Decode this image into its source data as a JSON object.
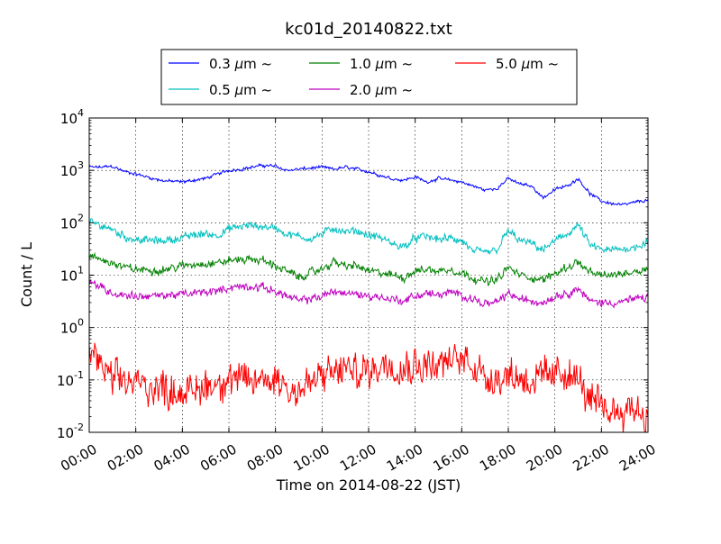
{
  "chart_data": {
    "type": "line",
    "title": "kc01d_20140822.txt",
    "xlabel": "Time on 2014-08-22 (JST)",
    "ylabel": "Count / L",
    "x_unit": "hours",
    "xlim": [
      0,
      24
    ],
    "ylim": [
      0.01,
      10000
    ],
    "y_scale": "log",
    "grid": true,
    "legend_position": "top",
    "x_ticks": [
      {
        "value": 0,
        "label": "00:00"
      },
      {
        "value": 2,
        "label": "02:00"
      },
      {
        "value": 4,
        "label": "04:00"
      },
      {
        "value": 6,
        "label": "06:00"
      },
      {
        "value": 8,
        "label": "08:00"
      },
      {
        "value": 10,
        "label": "10:00"
      },
      {
        "value": 12,
        "label": "12:00"
      },
      {
        "value": 14,
        "label": "14:00"
      },
      {
        "value": 16,
        "label": "16:00"
      },
      {
        "value": 18,
        "label": "18:00"
      },
      {
        "value": 20,
        "label": "20:00"
      },
      {
        "value": 22,
        "label": "22:00"
      },
      {
        "value": 24,
        "label": "24:00"
      }
    ],
    "y_ticks": [
      {
        "value": 0.01,
        "base": "10",
        "exp": "-2"
      },
      {
        "value": 0.1,
        "base": "10",
        "exp": "-1"
      },
      {
        "value": 1,
        "base": "10",
        "exp": "0"
      },
      {
        "value": 10,
        "base": "10",
        "exp": "1"
      },
      {
        "value": 100,
        "base": "10",
        "exp": "2"
      },
      {
        "value": 1000,
        "base": "10",
        "exp": "3"
      },
      {
        "value": 10000,
        "base": "10",
        "exp": "4"
      }
    ],
    "series": [
      {
        "name_prefix": "0.3 ",
        "name_mu": "μ",
        "name_suffix": "m  ~",
        "color": "#0000ff",
        "noise": 0.02,
        "points": [
          [
            0,
            1150
          ],
          [
            0.5,
            1150
          ],
          [
            1,
            1200
          ],
          [
            1.5,
            950
          ],
          [
            2,
            850
          ],
          [
            2.5,
            750
          ],
          [
            3,
            650
          ],
          [
            3.5,
            620
          ],
          [
            4,
            600
          ],
          [
            4.5,
            650
          ],
          [
            5,
            700
          ],
          [
            5.5,
            850
          ],
          [
            6,
            1000
          ],
          [
            6.5,
            1050
          ],
          [
            7,
            1150
          ],
          [
            7.5,
            1250
          ],
          [
            8,
            1200
          ],
          [
            8.5,
            1000
          ],
          [
            9,
            1050
          ],
          [
            9.5,
            1100
          ],
          [
            10,
            1150
          ],
          [
            10.5,
            1050
          ],
          [
            11,
            1150
          ],
          [
            11.5,
            1050
          ],
          [
            12,
            950
          ],
          [
            12.5,
            800
          ],
          [
            13,
            700
          ],
          [
            13.5,
            650
          ],
          [
            14,
            750
          ],
          [
            14.5,
            600
          ],
          [
            15,
            700
          ],
          [
            15.5,
            650
          ],
          [
            16,
            600
          ],
          [
            16.5,
            500
          ],
          [
            17,
            420
          ],
          [
            17.5,
            450
          ],
          [
            18,
            700
          ],
          [
            18.5,
            550
          ],
          [
            19,
            500
          ],
          [
            19.5,
            300
          ],
          [
            20,
            430
          ],
          [
            20.5,
            500
          ],
          [
            21,
            700
          ],
          [
            21.5,
            360
          ],
          [
            22,
            260
          ],
          [
            22.5,
            230
          ],
          [
            23,
            220
          ],
          [
            23.5,
            250
          ],
          [
            24,
            270
          ]
        ]
      },
      {
        "name_prefix": "0.5 ",
        "name_mu": "μ",
        "name_suffix": "m  ~",
        "color": "#00bfbf",
        "noise": 0.05,
        "points": [
          [
            0,
            100
          ],
          [
            0.5,
            90
          ],
          [
            1,
            75
          ],
          [
            1.5,
            55
          ],
          [
            2,
            48
          ],
          [
            2.5,
            46
          ],
          [
            3,
            45
          ],
          [
            3.5,
            48
          ],
          [
            4,
            52
          ],
          [
            4.5,
            58
          ],
          [
            5,
            62
          ],
          [
            5.5,
            58
          ],
          [
            6,
            75
          ],
          [
            6.5,
            85
          ],
          [
            7,
            88
          ],
          [
            7.5,
            85
          ],
          [
            8,
            80
          ],
          [
            8.5,
            60
          ],
          [
            9,
            55
          ],
          [
            9.5,
            50
          ],
          [
            10,
            60
          ],
          [
            10.5,
            80
          ],
          [
            11,
            65
          ],
          [
            11.5,
            70
          ],
          [
            12,
            58
          ],
          [
            12.5,
            52
          ],
          [
            13,
            40
          ],
          [
            13.5,
            35
          ],
          [
            14,
            50
          ],
          [
            14.5,
            55
          ],
          [
            15,
            48
          ],
          [
            15.5,
            50
          ],
          [
            16,
            45
          ],
          [
            16.5,
            28
          ],
          [
            17,
            27
          ],
          [
            17.5,
            30
          ],
          [
            18,
            70
          ],
          [
            18.5,
            45
          ],
          [
            19,
            40
          ],
          [
            19.5,
            30
          ],
          [
            20,
            45
          ],
          [
            20.5,
            60
          ],
          [
            21,
            90
          ],
          [
            21.5,
            38
          ],
          [
            22,
            30
          ],
          [
            22.5,
            30
          ],
          [
            23,
            32
          ],
          [
            23.5,
            35
          ],
          [
            24,
            45
          ]
        ]
      },
      {
        "name_prefix": "1.0 ",
        "name_mu": "μ",
        "name_suffix": "m  ~",
        "color": "#008000",
        "noise": 0.05,
        "points": [
          [
            0,
            22
          ],
          [
            0.5,
            20
          ],
          [
            1,
            17
          ],
          [
            1.5,
            14
          ],
          [
            2,
            13
          ],
          [
            2.5,
            12.5
          ],
          [
            3,
            12.5
          ],
          [
            3.5,
            13.5
          ],
          [
            4,
            15
          ],
          [
            4.5,
            16
          ],
          [
            5,
            17
          ],
          [
            5.5,
            17
          ],
          [
            6,
            19
          ],
          [
            6.5,
            20
          ],
          [
            7,
            20
          ],
          [
            7.5,
            19
          ],
          [
            8,
            15
          ],
          [
            8.5,
            12
          ],
          [
            9,
            9
          ],
          [
            9.5,
            11
          ],
          [
            10,
            13
          ],
          [
            10.5,
            18
          ],
          [
            11,
            15
          ],
          [
            11.5,
            15
          ],
          [
            12,
            12
          ],
          [
            12.5,
            11
          ],
          [
            13,
            10
          ],
          [
            13.5,
            9
          ],
          [
            14,
            12
          ],
          [
            14.5,
            13
          ],
          [
            15,
            12
          ],
          [
            15.5,
            13
          ],
          [
            16,
            11
          ],
          [
            16.5,
            9
          ],
          [
            17,
            7.5
          ],
          [
            17.5,
            8
          ],
          [
            18,
            14
          ],
          [
            18.5,
            10
          ],
          [
            19,
            9
          ],
          [
            19.5,
            8
          ],
          [
            20,
            11
          ],
          [
            20.5,
            14
          ],
          [
            21,
            18
          ],
          [
            21.5,
            11
          ],
          [
            22,
            10
          ],
          [
            22.5,
            10
          ],
          [
            23,
            11
          ],
          [
            23.5,
            12
          ],
          [
            24,
            14
          ]
        ]
      },
      {
        "name_prefix": "2.0 ",
        "name_mu": "μ",
        "name_suffix": "m  ~",
        "color": "#bf00bf",
        "noise": 0.05,
        "points": [
          [
            0,
            7.5
          ],
          [
            0.5,
            6
          ],
          [
            1,
            4.5
          ],
          [
            1.5,
            4.2
          ],
          [
            2,
            4
          ],
          [
            2.5,
            4
          ],
          [
            3,
            4
          ],
          [
            3.5,
            4.2
          ],
          [
            4,
            4.3
          ],
          [
            4.5,
            4.5
          ],
          [
            5,
            4.8
          ],
          [
            5.5,
            5
          ],
          [
            6,
            5.8
          ],
          [
            6.5,
            6
          ],
          [
            7,
            6
          ],
          [
            7.5,
            5.8
          ],
          [
            8,
            5
          ],
          [
            8.5,
            4
          ],
          [
            9,
            3.2
          ],
          [
            9.5,
            3.5
          ],
          [
            10,
            4
          ],
          [
            10.5,
            5
          ],
          [
            11,
            4.5
          ],
          [
            11.5,
            4.3
          ],
          [
            12,
            4
          ],
          [
            12.5,
            3.8
          ],
          [
            13,
            3.5
          ],
          [
            13.5,
            3.2
          ],
          [
            14,
            4
          ],
          [
            14.5,
            4.5
          ],
          [
            15,
            4.2
          ],
          [
            15.5,
            4.6
          ],
          [
            16,
            4.2
          ],
          [
            16.5,
            3.5
          ],
          [
            17,
            2.8
          ],
          [
            17.5,
            3
          ],
          [
            18,
            4.5
          ],
          [
            18.5,
            3.5
          ],
          [
            19,
            3.2
          ],
          [
            19.5,
            3
          ],
          [
            20,
            4
          ],
          [
            20.5,
            4.5
          ],
          [
            21,
            5.5
          ],
          [
            21.5,
            3.2
          ],
          [
            22,
            3
          ],
          [
            22.5,
            3
          ],
          [
            23,
            3.2
          ],
          [
            23.5,
            3.5
          ],
          [
            24,
            3.8
          ]
        ]
      },
      {
        "name_prefix": "5.0 ",
        "name_mu": "μ",
        "name_suffix": "m  ~",
        "color": "#ff0000",
        "noise": 0.22,
        "points": [
          [
            0,
            0.35
          ],
          [
            0.3,
            0.3
          ],
          [
            0.6,
            0.15
          ],
          [
            1,
            0.1
          ],
          [
            2,
            0.09
          ],
          [
            3,
            0.07
          ],
          [
            4,
            0.06
          ],
          [
            4.5,
            0.06
          ],
          [
            5,
            0.08
          ],
          [
            6,
            0.1
          ],
          [
            7,
            0.09
          ],
          [
            8,
            0.11
          ],
          [
            8.5,
            0.08
          ],
          [
            9,
            0.06
          ],
          [
            10,
            0.12
          ],
          [
            11,
            0.16
          ],
          [
            11.5,
            0.14
          ],
          [
            12,
            0.15
          ],
          [
            12.5,
            0.2
          ],
          [
            13,
            0.22
          ],
          [
            13.5,
            0.18
          ],
          [
            14,
            0.2
          ],
          [
            15,
            0.2
          ],
          [
            15.5,
            0.22
          ],
          [
            16,
            0.25
          ],
          [
            16.5,
            0.22
          ],
          [
            17,
            0.12
          ],
          [
            17.5,
            0.11
          ],
          [
            18,
            0.13
          ],
          [
            19,
            0.1
          ],
          [
            20,
            0.12
          ],
          [
            20.5,
            0.15
          ],
          [
            21,
            0.1
          ],
          [
            21.5,
            0.04
          ],
          [
            22,
            0.03
          ],
          [
            22.5,
            0.025
          ],
          [
            23,
            0.03
          ],
          [
            23.5,
            0.03
          ],
          [
            24,
            0.02
          ]
        ]
      }
    ]
  }
}
